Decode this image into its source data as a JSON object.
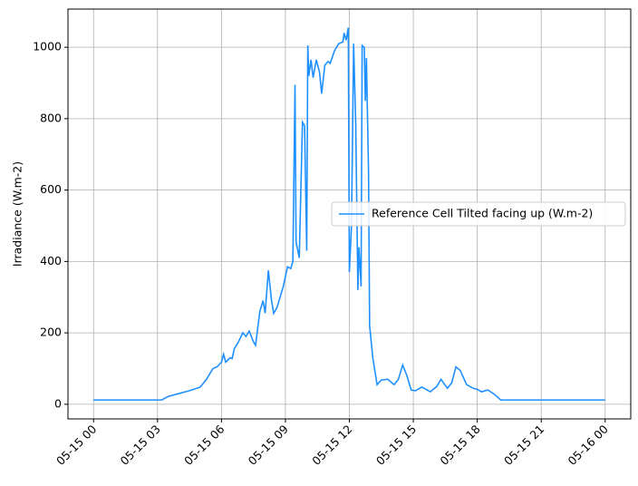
{
  "chart_data": {
    "type": "line",
    "y_label": "Irradiance (W.m-2)",
    "x": [
      0,
      3.2,
      3.5,
      4.0,
      4.5,
      5.0,
      5.3,
      5.6,
      5.8,
      6.0,
      6.1,
      6.2,
      6.4,
      6.5,
      6.6,
      6.8,
      7.0,
      7.15,
      7.3,
      7.5,
      7.6,
      7.8,
      7.95,
      8.05,
      8.2,
      8.35,
      8.45,
      8.6,
      8.9,
      9.1,
      9.25,
      9.35,
      9.45,
      9.5,
      9.65,
      9.8,
      9.9,
      10.0,
      10.05,
      10.1,
      10.2,
      10.3,
      10.45,
      10.6,
      10.7,
      10.85,
      11.0,
      11.1,
      11.3,
      11.5,
      11.7,
      11.75,
      11.85,
      11.95,
      12.0,
      12.1,
      12.2,
      12.3,
      12.4,
      12.45,
      12.55,
      12.6,
      12.7,
      12.75,
      12.8,
      12.9,
      12.95,
      13.1,
      13.3,
      13.5,
      13.8,
      14.1,
      14.3,
      14.5,
      14.7,
      14.9,
      15.1,
      15.4,
      15.8,
      16.1,
      16.3,
      16.6,
      16.8,
      17.0,
      17.2,
      17.5,
      17.8,
      18.0,
      18.2,
      18.5,
      18.8,
      19.1,
      20,
      24
    ],
    "series": [
      {
        "name": "Reference Cell Tilted facing up (W.m-2)",
        "color": "#1e90ff",
        "values": [
          12,
          12,
          22,
          30,
          38,
          48,
          70,
          100,
          105,
          118,
          140,
          118,
          130,
          128,
          155,
          175,
          200,
          190,
          205,
          175,
          165,
          260,
          290,
          255,
          375,
          290,
          255,
          270,
          330,
          385,
          380,
          400,
          895,
          455,
          410,
          790,
          780,
          430,
          1005,
          920,
          965,
          915,
          965,
          930,
          870,
          950,
          960,
          955,
          990,
          1010,
          1015,
          1040,
          1020,
          1055,
          370,
          500,
          1010,
          780,
          320,
          440,
          330,
          1005,
          1000,
          850,
          970,
          650,
          220,
          130,
          55,
          68,
          70,
          55,
          70,
          110,
          80,
          40,
          38,
          48,
          35,
          50,
          70,
          45,
          60,
          105,
          95,
          55,
          45,
          42,
          35,
          40,
          28,
          12,
          12,
          12
        ]
      }
    ],
    "xlim": [
      -1.2,
      25.2
    ],
    "xticks": [
      {
        "value": 0,
        "label": "05-15 00"
      },
      {
        "value": 3,
        "label": "05-15 03"
      },
      {
        "value": 6,
        "label": "05-15 06"
      },
      {
        "value": 9,
        "label": "05-15 09"
      },
      {
        "value": 12,
        "label": "05-15 12"
      },
      {
        "value": 15,
        "label": "05-15 15"
      },
      {
        "value": 18,
        "label": "05-15 18"
      },
      {
        "value": 21,
        "label": "05-15 21"
      },
      {
        "value": 24,
        "label": "05-16 00"
      }
    ],
    "ylim": [
      -41,
      1107
    ],
    "yticks": [
      0,
      200,
      400,
      600,
      800,
      1000
    ],
    "grid": true,
    "legend": "center right"
  }
}
